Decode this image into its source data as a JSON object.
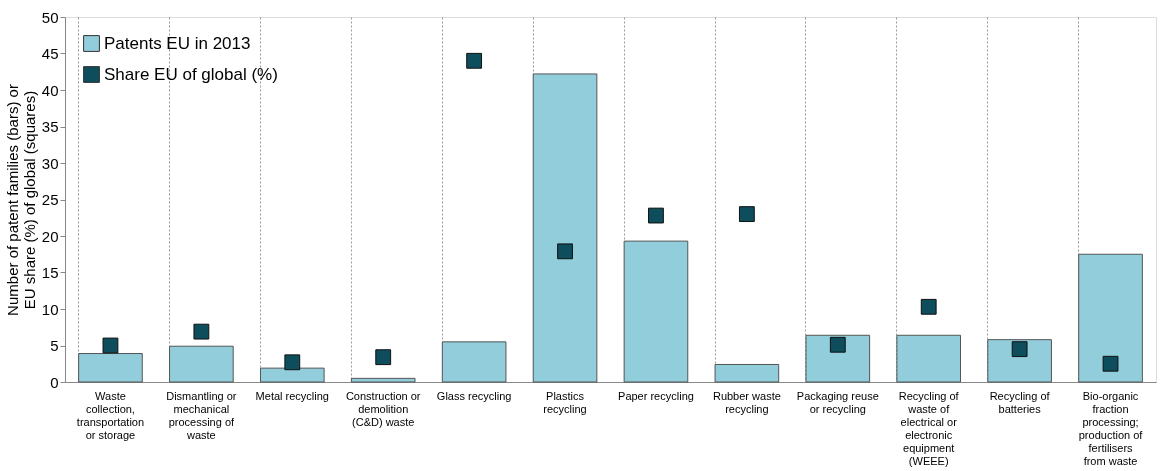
{
  "chart_data": {
    "type": "bar",
    "ylabel": "Number of patent families (bars) or EU share (%) of global (squares)",
    "categories": [
      "Waste collection, transportation or storage",
      "Dismantling or mechanical processing of waste",
      "Metal recycling",
      "Construction or demolition (C&D) waste",
      "Glass recycling",
      "Plastics recycling",
      "Paper recycling",
      "Rubber waste recycling",
      "Packaging reuse or recycling",
      "Recycling of waste of electrical or electronic equipment (WEEE)",
      "Recycling of batteries",
      "Bio-organic fraction processing; production of fertilisers from waste"
    ],
    "series": [
      {
        "name": "Patents EU in 2013",
        "color": "#92cddc",
        "values": [
          3.9,
          4.9,
          1.9,
          0.5,
          5.5,
          42.2,
          19.3,
          2.4,
          6.4,
          6.4,
          5.8,
          17.5
        ]
      },
      {
        "name": "Share EU of global (%)",
        "type": "scatter",
        "color": "#0e4d5c",
        "values": [
          5.0,
          6.9,
          2.7,
          3.4,
          44.0,
          17.9,
          22.8,
          23.0,
          5.1,
          10.3,
          4.5,
          2.5
        ]
      }
    ],
    "ylim": [
      0,
      50
    ],
    "yticks": [
      0,
      5,
      10,
      15,
      20,
      25,
      30,
      35,
      40,
      45,
      50
    ],
    "grid": "x",
    "legend": "top left",
    "marker": "square"
  }
}
